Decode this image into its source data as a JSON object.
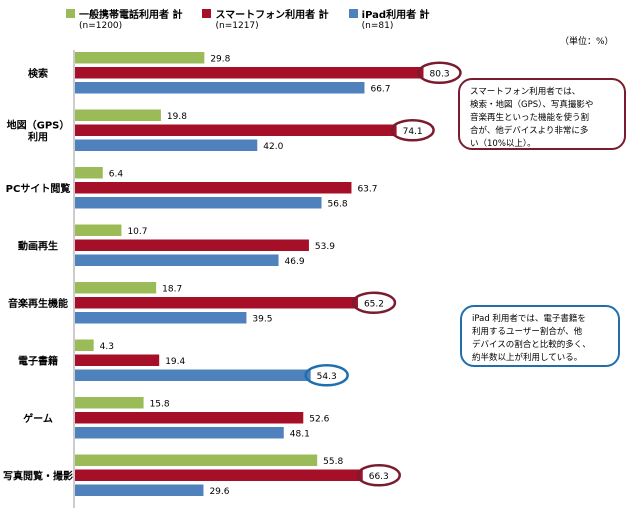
{
  "chart_data": {
    "type": "bar",
    "orientation": "horizontal",
    "unit_label": "（単位：%）",
    "categories": [
      [
        "検索"
      ],
      [
        "地図（GPS）",
        "利用"
      ],
      [
        "PCサイト閲覧"
      ],
      [
        "動画再生"
      ],
      [
        "音楽再生機能"
      ],
      [
        "電子書籍"
      ],
      [
        "ゲーム"
      ],
      [
        "写真閲覧・撮影"
      ]
    ],
    "series": [
      {
        "name": "一般携帯電話利用者 計",
        "n": "(n=1200)",
        "color": "#9bbb59",
        "values": [
          29.8,
          19.8,
          6.4,
          10.7,
          18.7,
          4.3,
          15.8,
          55.8
        ]
      },
      {
        "name": "スマートフォン利用者 計",
        "n": "(n=1217)",
        "color": "#a50f28",
        "values": [
          80.3,
          74.1,
          63.7,
          53.9,
          65.2,
          19.4,
          52.6,
          66.3
        ]
      },
      {
        "name": "iPad利用者 計",
        "n": "(n=81)",
        "color": "#4f81bd",
        "values": [
          66.7,
          42.0,
          56.8,
          46.9,
          39.5,
          54.3,
          48.1,
          29.6
        ]
      }
    ],
    "highlighted": [
      {
        "series": 1,
        "index": 0,
        "color": "#7a1c2e"
      },
      {
        "series": 1,
        "index": 1,
        "color": "#7a1c2e"
      },
      {
        "series": 1,
        "index": 4,
        "color": "#7a1c2e"
      },
      {
        "series": 2,
        "index": 5,
        "color": "#1f6fae"
      },
      {
        "series": 1,
        "index": 7,
        "color": "#7a1c2e"
      }
    ],
    "xlim": [
      0,
      100
    ],
    "grid": false,
    "legend_position": "top"
  },
  "annotations": {
    "note1_lines": [
      "スマートフォン利用者では、",
      "検索・地図（GPS）、写真撮影や",
      "音楽再生といった機能を使う割",
      "合が、他デバイスより非常に多",
      "い（10%以上）。"
    ],
    "note2_lines": [
      "iPad 利用者では、電子書籍を",
      "利用するユーザー割合が、他",
      "デバイスの割合と比較的多く、",
      "約半数以上が利用している。"
    ]
  }
}
